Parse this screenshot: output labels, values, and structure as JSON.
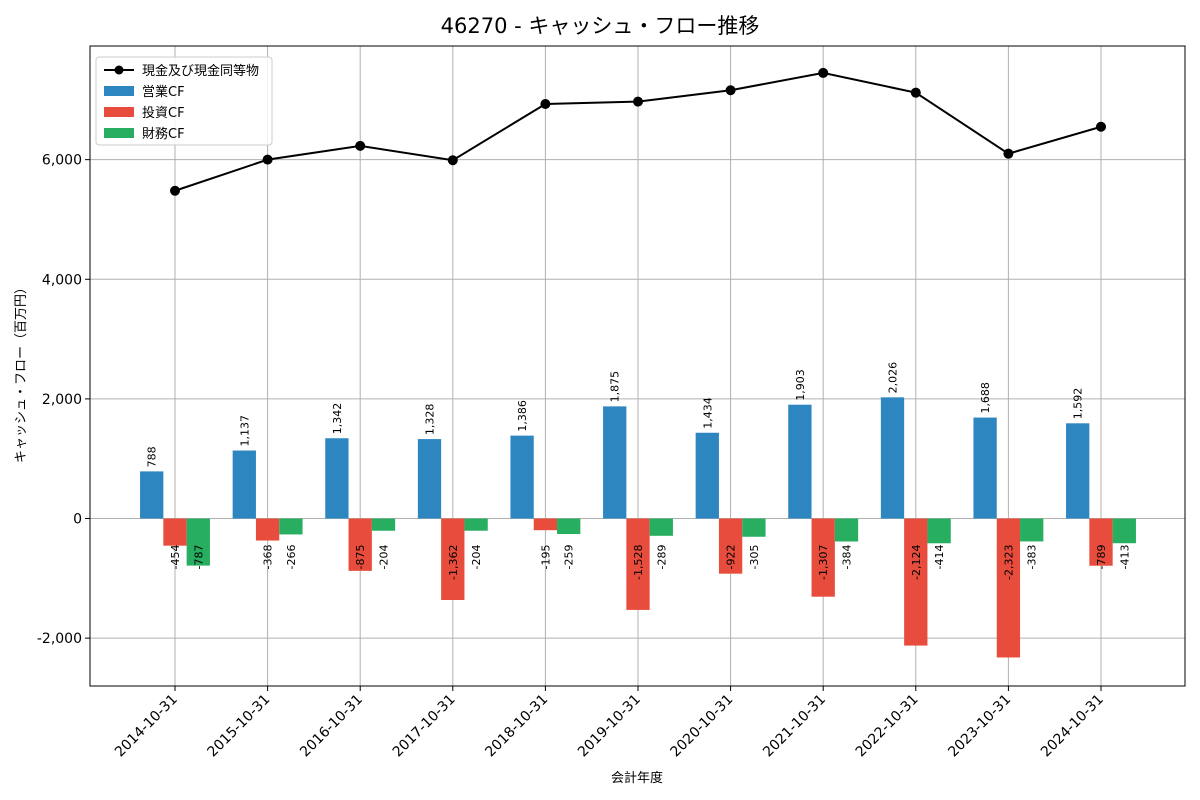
{
  "chart_data": {
    "type": "bar",
    "title": "46270 - キャッシュ・フロー推移",
    "xlabel": "会計年度",
    "ylabel": "キャッシュ・フロー（百万円）",
    "categories": [
      "2014-10-31",
      "2015-10-31",
      "2016-10-31",
      "2017-10-31",
      "2018-10-31",
      "2019-10-31",
      "2020-10-31",
      "2021-10-31",
      "2022-10-31",
      "2023-10-31",
      "2024-10-31"
    ],
    "ylim": [
      -2800,
      7900
    ],
    "yticks": [
      -2000,
      0,
      2000,
      4000,
      6000
    ],
    "ytick_labels": [
      "-2,000",
      "0",
      "2,000",
      "4,000",
      "6,000"
    ],
    "grid": true,
    "legend_position": "top-left",
    "series": [
      {
        "name": "営業CF",
        "kind": "bar",
        "color": "#2e86c1",
        "values": [
          788,
          1137,
          1342,
          1328,
          1386,
          1875,
          1434,
          1903,
          2026,
          1688,
          1592
        ],
        "labels": [
          "788",
          "1,137",
          "1,342",
          "1,328",
          "1,386",
          "1,875",
          "1,434",
          "1,903",
          "2,026",
          "1,688",
          "1,592"
        ]
      },
      {
        "name": "投資CF",
        "kind": "bar",
        "color": "#e74c3c",
        "values": [
          -454,
          -368,
          -875,
          -1362,
          -195,
          -1528,
          -922,
          -1307,
          -2124,
          -2323,
          -789
        ],
        "labels": [
          "-454",
          "-368",
          "-875",
          "-1,362",
          "-195",
          "-1,528",
          "-922",
          "-1,307",
          "-2,124",
          "-2,323",
          "-789"
        ]
      },
      {
        "name": "財務CF",
        "kind": "bar",
        "color": "#27ae60",
        "values": [
          -787,
          -266,
          -204,
          -204,
          -259,
          -289,
          -305,
          -384,
          -414,
          -383,
          -413
        ],
        "labels": [
          "-787",
          "-266",
          "-204",
          "-204",
          "-259",
          "-289",
          "-305",
          "-384",
          "-414",
          "-383",
          "-413"
        ]
      },
      {
        "name": "現金及び現金同等物",
        "kind": "line",
        "color": "#000000",
        "values": [
          5480,
          6000,
          6230,
          5990,
          6930,
          6970,
          7160,
          7450,
          7120,
          6100,
          6550
        ]
      }
    ]
  }
}
